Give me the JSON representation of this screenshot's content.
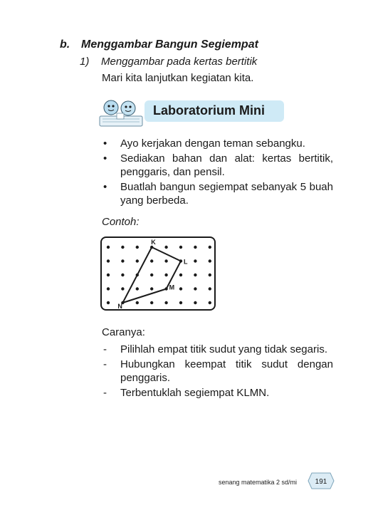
{
  "section": {
    "marker": "b.",
    "title": "Menggambar Bangun Segiempat"
  },
  "subsection": {
    "marker": "1)",
    "title": "Menggambar pada kertas bertitik"
  },
  "intro": "Mari kita lanjutkan kegiatan kita.",
  "lab_title": "Laboratorium Mini",
  "bullet_symbol": "•",
  "bullets": [
    "Ayo kerjakan dengan teman sebangku.",
    "Sediakan bahan dan alat: kertas bertitik, penggaris, dan pensil.",
    "Buatlah bangun segiempat sebanyak 5 buah yang berbeda."
  ],
  "example_label": "Contoh:",
  "figure": {
    "rows": 5,
    "cols": 8,
    "vertices": [
      {
        "label": "K",
        "col": 3,
        "row": 0
      },
      {
        "label": "L",
        "col": 5,
        "row": 1
      },
      {
        "label": "M",
        "col": 4,
        "row": 3
      },
      {
        "label": "N",
        "col": 1,
        "row": 4
      }
    ]
  },
  "steps_title": "Caranya:",
  "step_symbol": "-",
  "steps": [
    "Pilihlah empat titik sudut yang tidak segaris.",
    "Hubungkan keempat titik sudut dengan penggaris.",
    "Terbentuklah segiempat KLMN."
  ],
  "footer": {
    "book": "senang matematika 2 sd/mi",
    "page": "191"
  },
  "colors": {
    "lab_bg": "#cfeaf6",
    "badge_bg": "#dcecf5"
  },
  "icons": {
    "lab_mascot": "children-at-desk-icon"
  }
}
